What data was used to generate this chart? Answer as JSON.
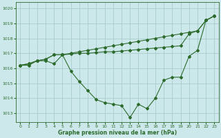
{
  "background_color": "#cce8ea",
  "grid_color": "#aacccc",
  "line_color": "#2d6b2d",
  "xlabel": "Graphe pression niveau de la mer (hPa)",
  "ylim": [
    1012.4,
    1020.4
  ],
  "xlim": [
    -0.5,
    23.5
  ],
  "yticks": [
    1013,
    1014,
    1015,
    1016,
    1017,
    1018,
    1019,
    1020
  ],
  "xticks": [
    0,
    1,
    2,
    3,
    4,
    5,
    6,
    7,
    8,
    9,
    10,
    11,
    12,
    13,
    14,
    15,
    16,
    17,
    18,
    19,
    20,
    21,
    22,
    23
  ],
  "series1": [
    1016.2,
    1016.2,
    1016.5,
    1016.5,
    1016.3,
    1016.9,
    1015.8,
    1015.1,
    1014.5,
    1013.9,
    1013.7,
    1013.6,
    1013.5,
    1012.7,
    1013.6,
    1013.3,
    1014.0,
    1015.2,
    1015.4,
    1015.4,
    1016.8,
    1017.2,
    1019.2,
    1019.5
  ],
  "series2": [
    1016.2,
    1016.3,
    1016.5,
    1016.6,
    1016.9,
    1016.9,
    1016.95,
    1017.0,
    1017.0,
    1017.05,
    1017.1,
    1017.1,
    1017.15,
    1017.2,
    1017.25,
    1017.3,
    1017.35,
    1017.4,
    1017.45,
    1017.5,
    1018.3,
    1018.5,
    1019.2,
    1019.5
  ],
  "series3": [
    1016.2,
    1016.3,
    1016.5,
    1016.6,
    1016.9,
    1016.9,
    1017.0,
    1017.1,
    1017.2,
    1017.3,
    1017.4,
    1017.5,
    1017.6,
    1017.7,
    1017.8,
    1017.9,
    1018.0,
    1018.1,
    1018.2,
    1018.3,
    1018.4,
    1018.5,
    1019.2,
    1019.5
  ]
}
